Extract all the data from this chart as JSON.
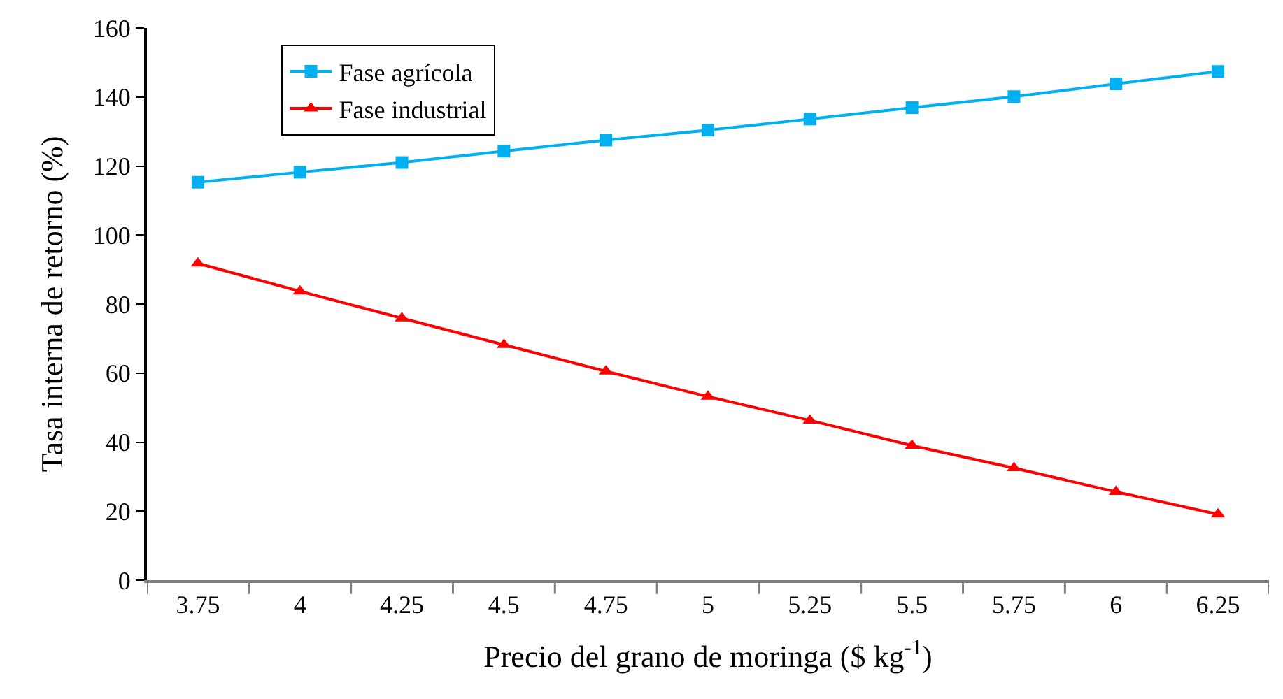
{
  "chart_data": {
    "type": "line",
    "xlabel": "Precio del grano de moringa ($ kg$^{-1}$)",
    "ylabel": "Tasa interna de retorno (%)",
    "categories": [
      "3.75",
      "4",
      "4.25",
      "4.5",
      "4.75",
      "5",
      "5.25",
      "5.5",
      "5.75",
      "6",
      "6.25"
    ],
    "series": [
      {
        "name": "Fase agrícola",
        "color": "#00b0f0",
        "marker": "square",
        "values": [
          115.3,
          118.2,
          121.0,
          124.3,
          127.5,
          130.4,
          133.6,
          136.9,
          140.1,
          143.8,
          147.4
        ]
      },
      {
        "name": "Fase industrial",
        "color": "#ff0000",
        "marker": "triangle",
        "values": [
          91.8,
          83.7,
          75.9,
          68.2,
          60.5,
          53.2,
          46.3,
          39.0,
          32.5,
          25.6,
          19.1
        ]
      }
    ],
    "ylim": [
      0,
      160
    ],
    "yticks": [
      0,
      20,
      40,
      60,
      80,
      100,
      120,
      140,
      160
    ],
    "legend": "top left",
    "line_style": "solid"
  }
}
